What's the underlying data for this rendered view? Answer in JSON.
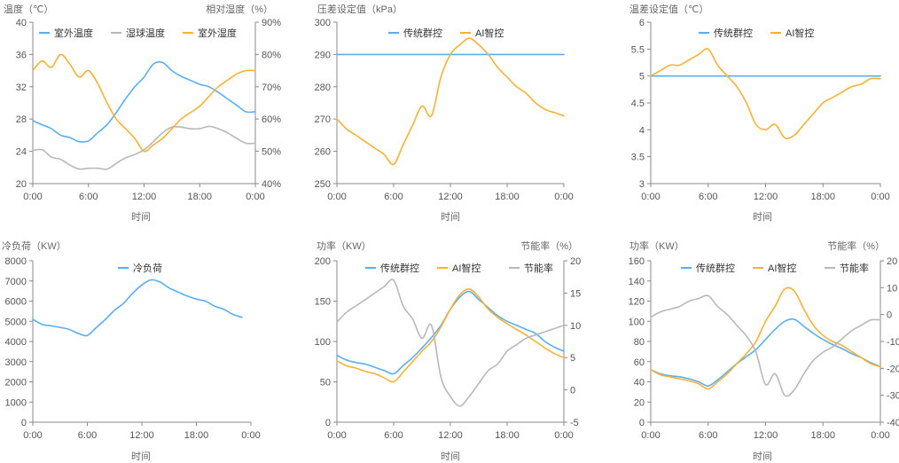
{
  "colors": {
    "blue": "#5aaef0",
    "gray": "#b8b8b8",
    "orange": "#f5b234",
    "axis": "#888888"
  },
  "chart_data": [
    {
      "type": "line",
      "ylabel": "温度（℃）",
      "y2label": "相对湿度（%）",
      "xlabel": "时间",
      "x_ticks": [
        "0:00",
        "6:00",
        "12:00",
        "18:00",
        "0:00"
      ],
      "ylim": [
        20,
        40
      ],
      "y_ticks": [
        20,
        24,
        28,
        32,
        36,
        40
      ],
      "y2lim": [
        40,
        90
      ],
      "y2_ticks": [
        "40%",
        "50%",
        "60%",
        "70%",
        "80%",
        "90%"
      ],
      "legend": [
        "室外温度",
        "湿球温度",
        "室外湿度"
      ],
      "x": [
        0,
        1,
        2,
        3,
        4,
        5,
        6,
        7,
        8,
        9,
        10,
        11,
        12,
        13,
        14,
        15,
        16,
        17,
        18,
        19,
        20,
        21,
        22,
        23,
        24
      ],
      "series": [
        {
          "name": "室外温度",
          "axis": "left",
          "color": "#5aaef0",
          "values": [
            27.8,
            27.3,
            26.8,
            26,
            25.7,
            25.2,
            25.3,
            26.3,
            27.3,
            28.8,
            30.5,
            32,
            33.2,
            34.8,
            35,
            34,
            33.3,
            32.8,
            32.3,
            32,
            31.3,
            30.5,
            29.7,
            28.9,
            28.9
          ]
        },
        {
          "name": "湿球温度",
          "axis": "left",
          "color": "#b8b8b8",
          "values": [
            24.1,
            24.2,
            23.3,
            23,
            22.3,
            21.8,
            21.9,
            21.9,
            21.8,
            22.5,
            23.2,
            23.6,
            24.2,
            25.2,
            26.3,
            27,
            27,
            26.8,
            26.8,
            27.1,
            26.8,
            26.3,
            25.6,
            25,
            25
          ]
        },
        {
          "name": "室外湿度",
          "axis": "right",
          "color": "#f5b234",
          "values": [
            75,
            78,
            76,
            80,
            77,
            73,
            75,
            71,
            65,
            60,
            57,
            54,
            50,
            52,
            54,
            57,
            60,
            62,
            64,
            67,
            70,
            72,
            74,
            75,
            75
          ]
        }
      ]
    },
    {
      "type": "line",
      "ylabel": "压差设定值（kPa）",
      "xlabel": "时间",
      "x_ticks": [
        "0:00",
        "6:00",
        "12:00",
        "18:00",
        "0:00"
      ],
      "ylim": [
        250,
        300
      ],
      "y_ticks": [
        250,
        260,
        270,
        280,
        290,
        300
      ],
      "legend": [
        "传统群控",
        "AI智控"
      ],
      "x": [
        0,
        1,
        2,
        3,
        4,
        5,
        6,
        7,
        8,
        9,
        10,
        11,
        12,
        13,
        14,
        15,
        16,
        17,
        18,
        19,
        20,
        21,
        22,
        23,
        24
      ],
      "series": [
        {
          "name": "传统群控",
          "color": "#5aaef0",
          "values": [
            290,
            290,
            290,
            290,
            290,
            290,
            290,
            290,
            290,
            290,
            290,
            290,
            290,
            290,
            290,
            290,
            290,
            290,
            290,
            290,
            290,
            290,
            290,
            290,
            290
          ]
        },
        {
          "name": "AI智控",
          "color": "#f5b234",
          "values": [
            270,
            267,
            265,
            263,
            261,
            259,
            256,
            262,
            268,
            274,
            271,
            283,
            290,
            293,
            295,
            293,
            290,
            286,
            283,
            280,
            278,
            275,
            273,
            272,
            271
          ]
        }
      ]
    },
    {
      "type": "line",
      "ylabel": "温差设定值（℃）",
      "xlabel": "时间",
      "x_ticks": [
        "0:00",
        "6:00",
        "12:00",
        "18:00",
        "0:00"
      ],
      "ylim": [
        3,
        6
      ],
      "y_ticks": [
        "3",
        "3.5",
        "4",
        "4.5",
        "5",
        "5.5",
        "6"
      ],
      "legend": [
        "传统群控",
        "AI智控"
      ],
      "x": [
        0,
        1,
        2,
        3,
        4,
        5,
        6,
        7,
        8,
        9,
        10,
        11,
        12,
        13,
        14,
        15,
        16,
        17,
        18,
        19,
        20,
        21,
        22,
        23,
        24
      ],
      "series": [
        {
          "name": "传统群控",
          "color": "#5aaef0",
          "values": [
            5,
            5,
            5,
            5,
            5,
            5,
            5,
            5,
            5,
            5,
            5,
            5,
            5,
            5,
            5,
            5,
            5,
            5,
            5,
            5,
            5,
            5,
            5,
            5,
            5
          ]
        },
        {
          "name": "AI智控",
          "color": "#f5b234",
          "values": [
            5,
            5.1,
            5.2,
            5.2,
            5.3,
            5.4,
            5.5,
            5.2,
            5,
            4.8,
            4.5,
            4.1,
            4,
            4.1,
            3.85,
            3.9,
            4.1,
            4.3,
            4.5,
            4.6,
            4.7,
            4.8,
            4.85,
            4.95,
            4.95
          ]
        }
      ]
    },
    {
      "type": "line",
      "ylabel": "冷负荷（KW）",
      "xlabel": "时间",
      "x_ticks": [
        "0:00",
        "6:00",
        "12:00",
        "18:00",
        "0:00"
      ],
      "ylim": [
        0,
        8000
      ],
      "y_ticks": [
        0,
        1000,
        2000,
        3000,
        4000,
        5000,
        6000,
        7000,
        8000
      ],
      "legend": [
        "冷负荷"
      ],
      "x": [
        0,
        1,
        2,
        3,
        4,
        5,
        6,
        7,
        8,
        9,
        10,
        11,
        12,
        13,
        14,
        15,
        16,
        17,
        18,
        19,
        20,
        21,
        22,
        23
      ],
      "series": [
        {
          "name": "冷负荷",
          "color": "#5aaef0",
          "values": [
            5100,
            4850,
            4780,
            4700,
            4600,
            4400,
            4300,
            4700,
            5100,
            5550,
            5900,
            6400,
            6800,
            7050,
            6950,
            6650,
            6450,
            6250,
            6100,
            6000,
            5750,
            5600,
            5350,
            5200
          ]
        }
      ]
    },
    {
      "type": "line",
      "ylabel": "功率（KW）",
      "y2label": "节能率（%）",
      "xlabel": "时间",
      "x_ticks": [
        "0:00",
        "6:00",
        "12:00",
        "18:00",
        "0:00"
      ],
      "ylim": [
        0,
        200
      ],
      "y_ticks": [
        0,
        50,
        100,
        150,
        200
      ],
      "y2lim": [
        -5,
        20
      ],
      "y2_ticks": [
        -5,
        0,
        5,
        10,
        15,
        20
      ],
      "legend": [
        "传统群控",
        "AI智控",
        "节能率"
      ],
      "x": [
        0,
        1,
        2,
        3,
        4,
        5,
        6,
        7,
        8,
        9,
        10,
        11,
        12,
        13,
        14,
        15,
        16,
        17,
        18,
        19,
        20,
        21,
        22,
        23,
        24
      ],
      "series": [
        {
          "name": "传统群控",
          "axis": "left",
          "color": "#5aaef0",
          "values": [
            83,
            77,
            74,
            72,
            68,
            64,
            60,
            70,
            80,
            92,
            105,
            120,
            140,
            155,
            162,
            152,
            142,
            132,
            125,
            120,
            115,
            110,
            100,
            93,
            88
          ]
        },
        {
          "name": "AI智控",
          "axis": "left",
          "color": "#f5b234",
          "values": [
            76,
            70,
            67,
            63,
            60,
            55,
            50,
            62,
            75,
            88,
            100,
            118,
            140,
            158,
            165,
            155,
            140,
            130,
            122,
            115,
            108,
            100,
            92,
            85,
            80
          ]
        },
        {
          "name": "节能率",
          "axis": "right",
          "color": "#b8b8b8",
          "values": [
            10.5,
            12,
            13,
            14,
            15,
            16,
            17,
            13,
            11,
            8,
            10,
            2,
            -1,
            -2.5,
            -1,
            1,
            3,
            4,
            6,
            7,
            8,
            8.5,
            9,
            9.5,
            10
          ]
        }
      ]
    },
    {
      "type": "line",
      "ylabel": "功率（KW）",
      "y2label": "节能率（%）",
      "xlabel": "时间",
      "x_ticks": [
        "0:00",
        "6:00",
        "12:00",
        "18:00",
        "0:00"
      ],
      "ylim": [
        0,
        160
      ],
      "y_ticks": [
        0,
        20,
        40,
        60,
        80,
        100,
        120,
        140,
        160
      ],
      "y2lim": [
        -40,
        20
      ],
      "y2_ticks": [
        -40,
        -30,
        -20,
        -10,
        0,
        10,
        20
      ],
      "legend": [
        "传统群控",
        "AI智控",
        "节能率"
      ],
      "x": [
        0,
        1,
        2,
        3,
        4,
        5,
        6,
        7,
        8,
        9,
        10,
        11,
        12,
        13,
        14,
        15,
        16,
        17,
        18,
        19,
        20,
        21,
        22,
        23,
        24
      ],
      "series": [
        {
          "name": "传统群控",
          "axis": "left",
          "color": "#5aaef0",
          "values": [
            52,
            48,
            46,
            45,
            43,
            40,
            36,
            42,
            50,
            58,
            65,
            72,
            82,
            92,
            100,
            102,
            95,
            88,
            82,
            77,
            73,
            68,
            64,
            59,
            55
          ]
        },
        {
          "name": "AI智控",
          "axis": "left",
          "color": "#f5b234",
          "values": [
            52,
            47,
            45,
            43,
            41,
            38,
            33,
            40,
            48,
            58,
            68,
            80,
            100,
            115,
            132,
            130,
            112,
            96,
            86,
            80,
            76,
            70,
            64,
            58,
            55
          ]
        },
        {
          "name": "节能率",
          "axis": "right",
          "color": "#b8b8b8",
          "values": [
            -1,
            1,
            2,
            3,
            5,
            6,
            7,
            3,
            0,
            -4,
            -8,
            -14,
            -26,
            -22,
            -30,
            -28,
            -22,
            -17,
            -14,
            -12,
            -9,
            -6,
            -4,
            -2,
            -2
          ]
        }
      ]
    }
  ]
}
